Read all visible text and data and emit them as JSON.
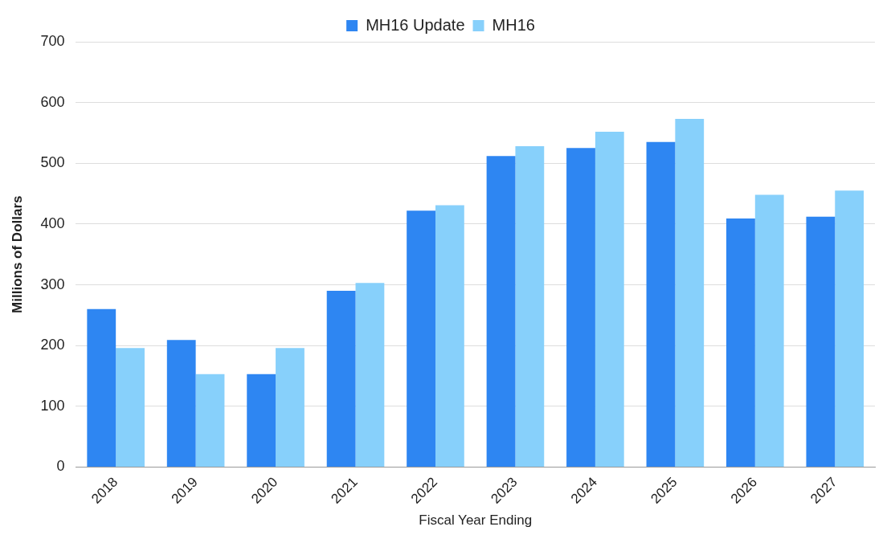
{
  "chart_data": {
    "type": "bar",
    "xlabel": "Fiscal Year Ending",
    "ylabel": "Millions of Dollars",
    "categories": [
      "2018",
      "2019",
      "2020",
      "2021",
      "2022",
      "2023",
      "2024",
      "2025",
      "2026",
      "2027"
    ],
    "series": [
      {
        "name": "MH16 Update",
        "color": "#2e86f2",
        "values": [
          260,
          209,
          153,
          290,
          422,
          512,
          525,
          535,
          409,
          412
        ]
      },
      {
        "name": "MH16",
        "color": "#87d0fb",
        "values": [
          196,
          153,
          196,
          303,
          431,
          528,
          552,
          573,
          448,
          455
        ]
      }
    ],
    "ylim": [
      0,
      700
    ],
    "yticks": [
      0,
      100,
      200,
      300,
      400,
      500,
      600,
      700
    ],
    "grid": "y",
    "legend": "top"
  }
}
